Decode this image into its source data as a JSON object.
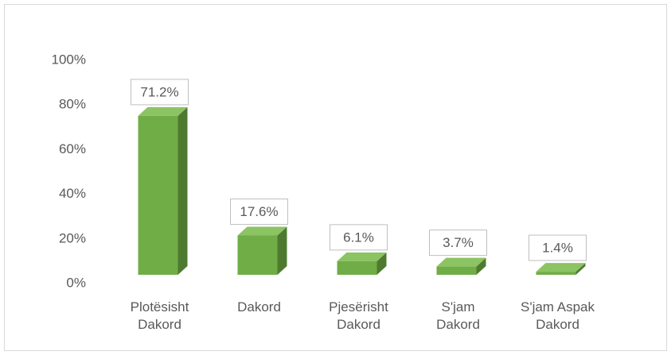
{
  "chart_data": {
    "type": "bar3d",
    "categories": [
      "Plotësisht Dakord",
      "Dakord",
      "Pjesërisht Dakord",
      "S'jam Dakord",
      "S'jam Aspak Dakord"
    ],
    "values": [
      71.2,
      17.6,
      6.1,
      3.7,
      1.4
    ],
    "value_labels": [
      "71.2%",
      "17.6%",
      "6.1%",
      "3.7%",
      "1.4%"
    ],
    "color": "#70ad47",
    "ylim": [
      0,
      100
    ],
    "yticks": [
      {
        "value": 0,
        "label": "0%"
      },
      {
        "value": 20,
        "label": "20%"
      },
      {
        "value": 40,
        "label": "40%"
      },
      {
        "value": 60,
        "label": "60%"
      },
      {
        "value": 80,
        "label": "80%"
      },
      {
        "value": 100,
        "label": "100%"
      }
    ],
    "grid": false
  }
}
